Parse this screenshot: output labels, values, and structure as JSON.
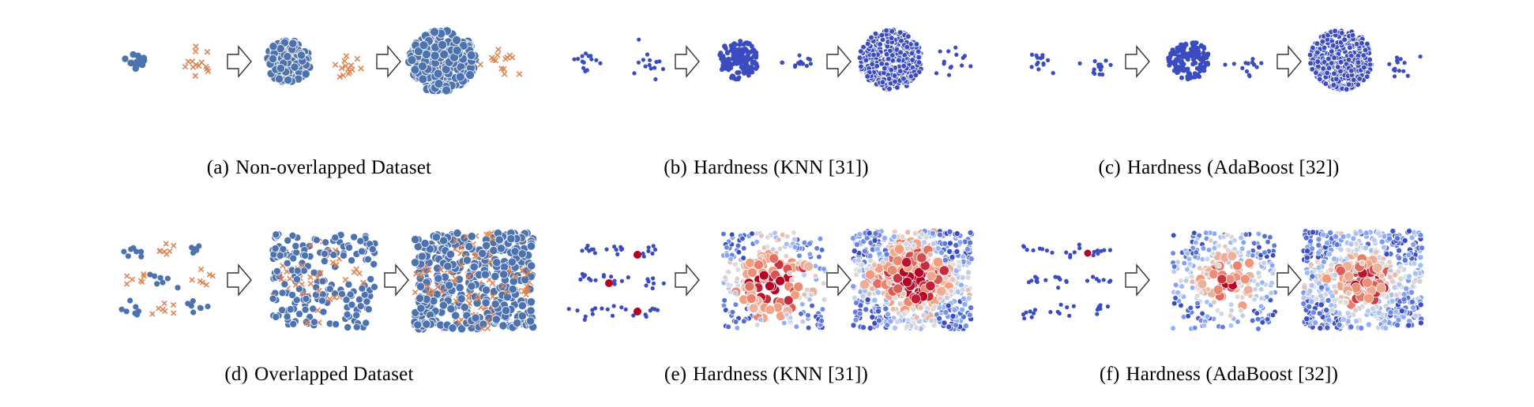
{
  "colors": {
    "class0_blue": "#4c72b0",
    "class1_orange": "#dd8452",
    "hardness_low": "#3b4cc0",
    "hardness_mid": "#dddddd",
    "hardness_high": "#b40426",
    "arrow_stroke": "#333333"
  },
  "icons": {
    "arrow": "hollow-right-arrow-icon"
  },
  "panels": [
    {
      "id": "a",
      "label": "(a)",
      "caption": "Non-overlapped Dataset",
      "dataset": "non-overlapped",
      "coloring": "class",
      "stages": [
        "original",
        "augmented",
        "augmented-more"
      ]
    },
    {
      "id": "b",
      "label": "(b)",
      "caption": "Hardness (KNN [31])",
      "dataset": "non-overlapped",
      "coloring": "hardness",
      "stages": [
        "original",
        "augmented",
        "augmented-more"
      ]
    },
    {
      "id": "c",
      "label": "(c)",
      "caption": "Hardness (AdaBoost [32])",
      "dataset": "non-overlapped",
      "coloring": "hardness",
      "stages": [
        "original",
        "augmented",
        "augmented-more"
      ]
    },
    {
      "id": "d",
      "label": "(d)",
      "caption": "Overlapped Dataset",
      "dataset": "overlapped",
      "coloring": "class",
      "stages": [
        "original",
        "augmented",
        "augmented-more"
      ]
    },
    {
      "id": "e",
      "label": "(e)",
      "caption": "Hardness (KNN [31])",
      "dataset": "overlapped",
      "coloring": "hardness",
      "stages": [
        "original",
        "augmented",
        "augmented-more"
      ]
    },
    {
      "id": "f",
      "label": "(f)",
      "caption": "Hardness (AdaBoost [32])",
      "dataset": "overlapped",
      "coloring": "hardness",
      "stages": [
        "original",
        "augmented",
        "augmented-more"
      ]
    }
  ]
}
